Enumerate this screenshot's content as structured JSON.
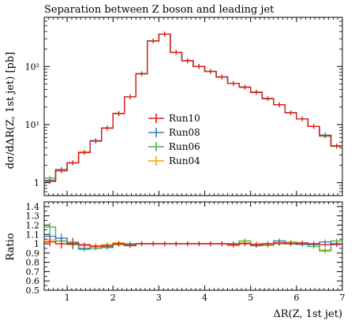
{
  "chart_data": {
    "type": "line",
    "title": "Separation between Z boson and leading jet",
    "xlabel": "ΔR(Z, 1st jet)",
    "ylabel": "dσ/dΔR(Z, 1st jet) [pb]",
    "ratio_ylabel": "Ratio",
    "xlim": [
      0.5,
      7.0
    ],
    "ylim": [
      0.6,
      700
    ],
    "yscale": "log",
    "ratio_ylim": [
      0.5,
      1.45
    ],
    "xticks": [
      "1",
      "2",
      "3",
      "4",
      "5",
      "6",
      "7"
    ],
    "yticks_main": [
      {
        "v": 1,
        "label": "1"
      },
      {
        "v": 10,
        "label": "10¹"
      },
      {
        "v": 100,
        "label": "10²"
      }
    ],
    "yticks_ratio": [
      "0.5",
      "0.6",
      "0.7",
      "0.8",
      "0.9",
      "1",
      "1.1",
      "1.2",
      "1.3",
      "1.4"
    ],
    "legend_position": "center",
    "bin_edges": [
      0.5,
      0.75,
      1.0,
      1.25,
      1.5,
      1.75,
      2.0,
      2.25,
      2.5,
      2.75,
      3.0,
      3.25,
      3.5,
      3.75,
      4.0,
      4.25,
      4.5,
      4.75,
      5.0,
      5.25,
      5.5,
      5.75,
      6.0,
      6.25,
      6.5,
      6.75,
      7.0
    ],
    "series": [
      {
        "name": "Run10",
        "color": "#e41a1c",
        "values": [
          1.05,
          1.6,
          2.2,
          3.3,
          5.2,
          8.7,
          15.5,
          30,
          75,
          275,
          360,
          175,
          125,
          100,
          82,
          66,
          51,
          44,
          36,
          28,
          22,
          16,
          12.5,
          9.3,
          6.5,
          4.3
        ],
        "ratio": [
          1.02,
          1.0,
          1.0,
          0.99,
          0.97,
          0.98,
          1.0,
          0.98,
          1.0,
          1.0,
          1.0,
          1.0,
          1.0,
          1.0,
          1.0,
          1.0,
          0.99,
          1.0,
          0.99,
          1.0,
          1.01,
          1.0,
          1.01,
          1.0,
          0.99,
          1.0
        ]
      },
      {
        "name": "Run08",
        "color": "#377eb8",
        "values": [
          1.1,
          1.7,
          2.2,
          3.3,
          5.3,
          8.7,
          15.5,
          30,
          75,
          275,
          360,
          175,
          125,
          100,
          82,
          66,
          51,
          44,
          36,
          28,
          22,
          16,
          12.5,
          9.3,
          6.6,
          4.3
        ],
        "ratio": [
          1.08,
          1.06,
          1.01,
          0.95,
          0.97,
          0.96,
          1.0,
          0.99,
          1.0,
          1.0,
          1.0,
          1.0,
          1.0,
          1.0,
          1.0,
          1.0,
          1.0,
          1.0,
          0.98,
          1.0,
          1.03,
          1.0,
          1.0,
          0.99,
          1.02,
          0.99
        ]
      },
      {
        "name": "Run06",
        "color": "#4daf4a",
        "values": [
          1.2,
          1.7,
          2.2,
          3.3,
          5.3,
          8.7,
          15.5,
          30,
          75,
          275,
          360,
          175,
          125,
          100,
          82,
          66,
          51,
          44,
          36,
          28,
          22,
          16,
          12.5,
          9.3,
          6.3,
          4.3
        ],
        "ratio": [
          1.18,
          1.03,
          0.99,
          0.94,
          0.95,
          0.97,
          0.99,
          1.0,
          1.0,
          1.0,
          1.0,
          1.0,
          1.0,
          1.0,
          1.0,
          1.0,
          1.0,
          1.03,
          0.98,
          0.99,
          1.0,
          1.01,
          0.99,
          0.97,
          0.93,
          1.03
        ]
      },
      {
        "name": "Run04",
        "color": "#ff9f00",
        "values": [
          1.1,
          1.6,
          2.2,
          3.4,
          5.2,
          8.8,
          15.5,
          30,
          75,
          275,
          360,
          175,
          125,
          100,
          82,
          66,
          51,
          44,
          36,
          28,
          22,
          16,
          12.5,
          9.3,
          6.4,
          4.2
        ],
        "ratio": [
          1.04,
          1.0,
          1.02,
          0.98,
          0.98,
          0.99,
          1.01,
          0.98,
          1.0,
          1.0,
          1.0,
          1.0,
          1.0,
          1.0,
          1.0,
          1.0,
          0.98,
          1.01,
          1.0,
          0.98,
          1.0,
          1.02,
          1.0,
          1.0,
          0.92,
          1.0
        ]
      }
    ]
  }
}
